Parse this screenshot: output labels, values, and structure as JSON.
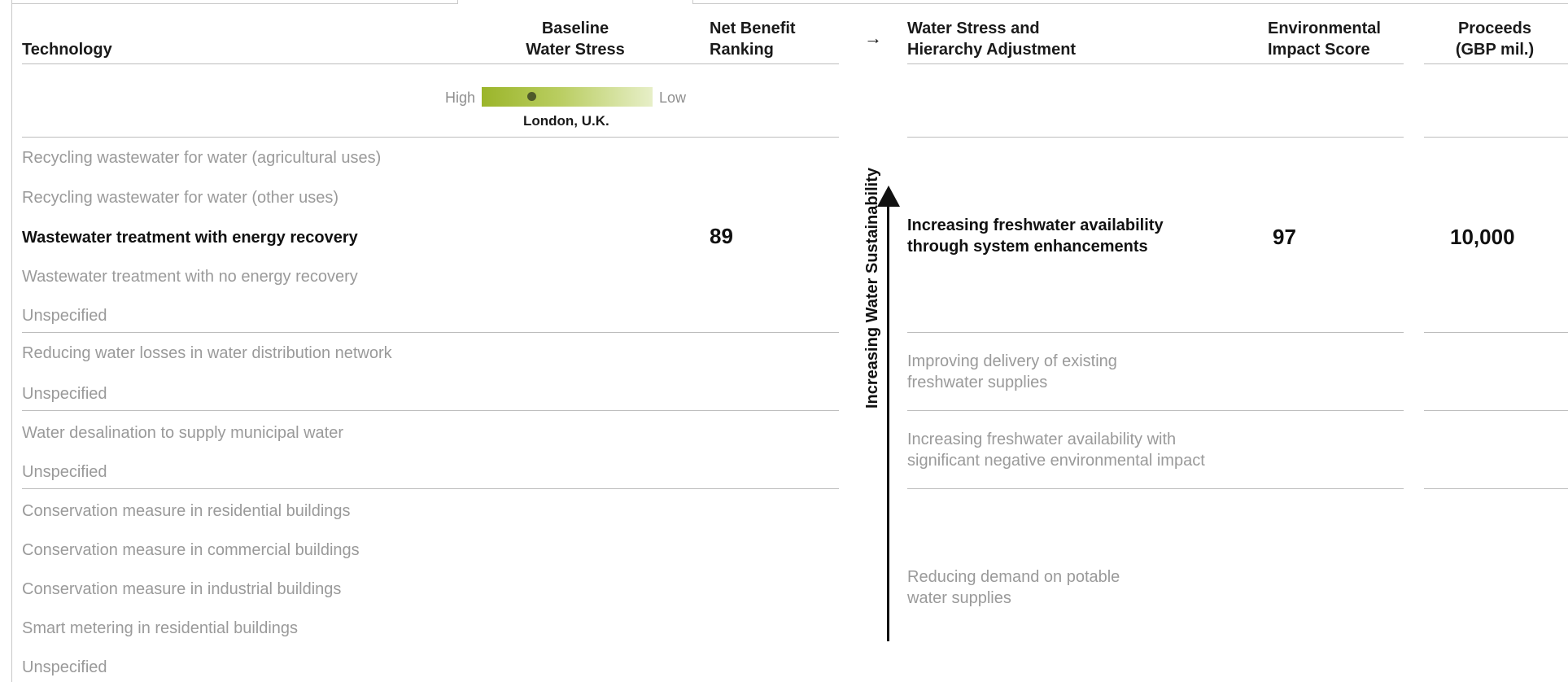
{
  "header": {
    "technology": "Technology",
    "baseline_water_stress": "Baseline\nWater Stress",
    "net_benefit_ranking": "Net Benefit\nRanking",
    "arrow_glyph": "→",
    "water_stress_hierarchy": "Water Stress and\nHierarchy Adjustment",
    "environmental_impact_score": "Environmental\nImpact Score",
    "proceeds": "Proceeds\n(GBP mil.)"
  },
  "stress_scale": {
    "high_label": "High",
    "low_label": "Low",
    "location": "London, U.K.",
    "level": 0.25,
    "color_high": "#9bb52a",
    "color_low": "#e7efc8"
  },
  "technologies": [
    {
      "label": "Recycling wastewater for water (agricultural uses)",
      "active": false
    },
    {
      "label": "Recycling wastewater for water (other uses)",
      "active": false
    },
    {
      "label": "Wastewater treatment with energy recovery",
      "active": true
    },
    {
      "label": "Wastewater treatment with no energy recovery",
      "active": false
    },
    {
      "label": "Unspecified",
      "active": false
    },
    {
      "label": "Reducing water losses in water distribution network",
      "active": false
    },
    {
      "label": "Unspecified",
      "active": false
    },
    {
      "label": "Water desalination to supply municipal water",
      "active": false
    },
    {
      "label": "Unspecified",
      "active": false
    },
    {
      "label": "Conservation measure in residential buildings",
      "active": false
    },
    {
      "label": "Conservation measure in commercial buildings",
      "active": false
    },
    {
      "label": "Conservation measure in industrial buildings",
      "active": false
    },
    {
      "label": "Smart metering in residential buildings",
      "active": false
    },
    {
      "label": "Unspecified",
      "active": false
    }
  ],
  "net_benefit_value": "89",
  "hierarchy_axis_label": "Increasing Water Sustainability",
  "categories": [
    {
      "label": "Increasing freshwater availability\nthrough system enhancements",
      "active": true
    },
    {
      "label": "Improving delivery of existing\nfreshwater supplies",
      "active": false
    },
    {
      "label": "Increasing freshwater availability with\nsignificant negative environmental impact",
      "active": false
    },
    {
      "label": "Reducing demand on potable\nwater supplies",
      "active": false
    }
  ],
  "environmental_impact_value": "97",
  "proceeds_value": "10,000"
}
